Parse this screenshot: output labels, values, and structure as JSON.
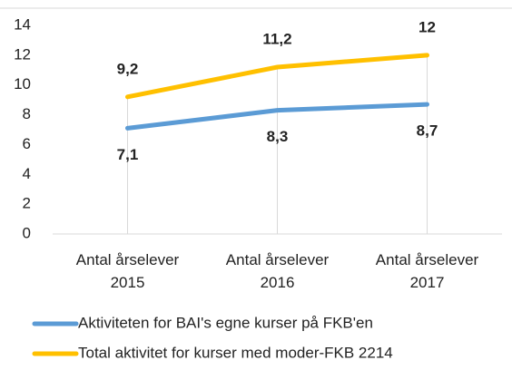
{
  "chart_data": {
    "type": "line",
    "categories": [
      "Antal årselever 2015",
      "Antal årselever 2016",
      "Antal årselever 2017"
    ],
    "series": [
      {
        "name": "Aktiviteten for BAI's egne kurser på FKB'en",
        "color": "#5b9bd5",
        "values": [
          7.1,
          8.3,
          8.7
        ],
        "value_labels": [
          "7,1",
          "8,3",
          "8,7"
        ]
      },
      {
        "name": "Total aktivitet for kurser med moder-FKB 2214",
        "color": "#ffc000",
        "values": [
          9.2,
          11.2,
          12
        ],
        "value_labels": [
          "9,2",
          "11,2",
          "12"
        ]
      }
    ],
    "ylim": [
      0,
      14
    ],
    "yticks": [
      0,
      2,
      4,
      6,
      8,
      10,
      12,
      14
    ],
    "grid": false,
    "drop_lines": true,
    "legend": "bottom"
  }
}
